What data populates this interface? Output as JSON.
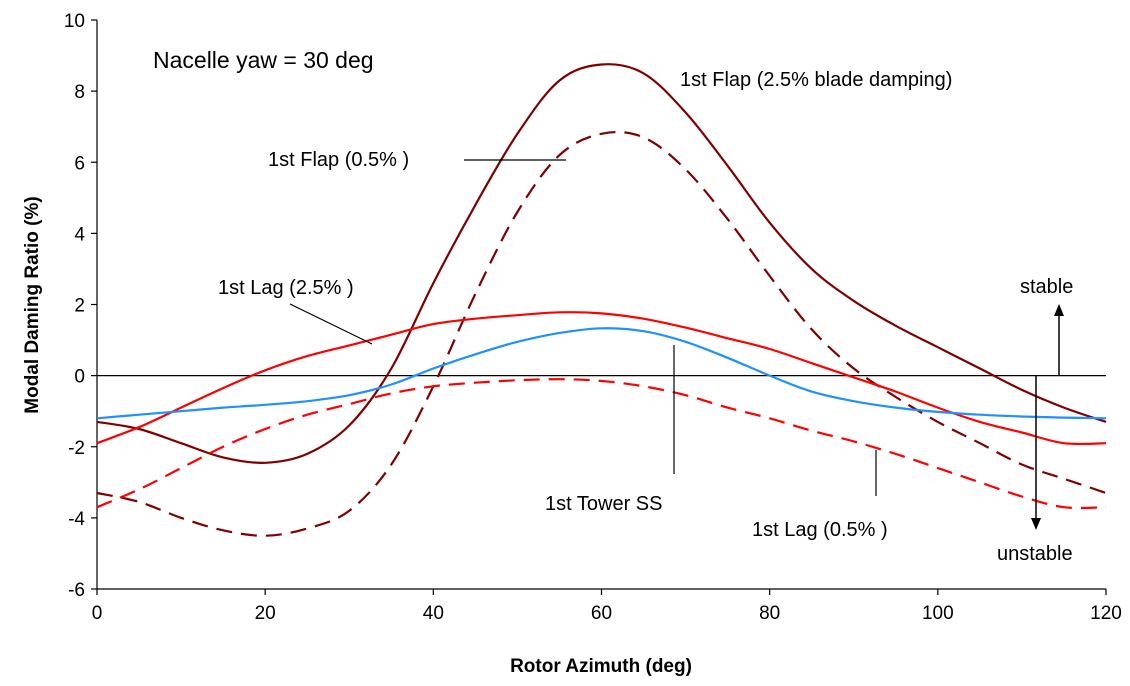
{
  "chart_data": {
    "type": "line",
    "title": "",
    "xlabel": "Rotor Azimuth (deg)",
    "ylabel": "Modal Daming Ratio (%)",
    "xlim": [
      0,
      120
    ],
    "ylim": [
      -6,
      10
    ],
    "xticks": [
      0,
      20,
      40,
      60,
      80,
      100,
      120
    ],
    "yticks": [
      -6,
      -4,
      -2,
      0,
      2,
      4,
      6,
      8,
      10
    ],
    "grid": false,
    "legend": "none",
    "series": [
      {
        "name": "1st Flap (2.5% blade damping)",
        "color": "#800000",
        "dash": "solid",
        "x": [
          0,
          5,
          10,
          15,
          20,
          25,
          30,
          35,
          40,
          45,
          50,
          55,
          60,
          65,
          70,
          75,
          80,
          85,
          90,
          95,
          100,
          105,
          110,
          115,
          120
        ],
        "y": [
          -1.3,
          -1.5,
          -1.9,
          -2.3,
          -2.45,
          -2.2,
          -1.4,
          0.2,
          2.6,
          4.8,
          6.8,
          8.3,
          8.75,
          8.5,
          7.4,
          5.9,
          4.3,
          3.0,
          2.1,
          1.4,
          0.8,
          0.2,
          -0.4,
          -0.9,
          -1.3
        ]
      },
      {
        "name": "1st Flap (0.5% )",
        "color": "#800000",
        "dash": "dashed",
        "x": [
          0,
          5,
          10,
          15,
          20,
          25,
          30,
          35,
          40,
          45,
          50,
          55,
          60,
          65,
          70,
          75,
          80,
          85,
          90,
          95,
          100,
          105,
          110,
          115,
          120
        ],
        "y": [
          -3.3,
          -3.55,
          -4.0,
          -4.35,
          -4.5,
          -4.3,
          -3.8,
          -2.5,
          -0.3,
          2.3,
          4.6,
          6.2,
          6.8,
          6.7,
          5.8,
          4.4,
          2.8,
          1.3,
          0.2,
          -0.6,
          -1.3,
          -1.9,
          -2.5,
          -2.9,
          -3.3
        ]
      },
      {
        "name": "1st Lag (2.5% )",
        "color": "#ff0000",
        "dash": "solid",
        "x": [
          0,
          5,
          10,
          15,
          20,
          25,
          30,
          35,
          40,
          45,
          50,
          55,
          60,
          65,
          70,
          75,
          80,
          85,
          90,
          95,
          100,
          105,
          110,
          115,
          120
        ],
        "y": [
          -1.9,
          -1.45,
          -0.9,
          -0.35,
          0.15,
          0.55,
          0.85,
          1.15,
          1.45,
          1.6,
          1.7,
          1.78,
          1.75,
          1.6,
          1.35,
          1.05,
          0.75,
          0.35,
          -0.05,
          -0.45,
          -0.9,
          -1.3,
          -1.6,
          -1.9,
          -1.9
        ]
      },
      {
        "name": "1st Lag (0.5% )",
        "color": "#ff0000",
        "dash": "dashed",
        "x": [
          0,
          5,
          10,
          15,
          20,
          25,
          30,
          35,
          40,
          45,
          50,
          55,
          60,
          65,
          70,
          75,
          80,
          85,
          90,
          95,
          100,
          105,
          110,
          115,
          120
        ],
        "y": [
          -3.7,
          -3.2,
          -2.6,
          -2.0,
          -1.5,
          -1.1,
          -0.8,
          -0.5,
          -0.3,
          -0.2,
          -0.13,
          -0.1,
          -0.15,
          -0.3,
          -0.55,
          -0.9,
          -1.2,
          -1.55,
          -1.85,
          -2.2,
          -2.6,
          -3.0,
          -3.4,
          -3.7,
          -3.7
        ]
      },
      {
        "name": "1st Tower SS",
        "color": "#1e90ff",
        "dash": "solid",
        "x": [
          0,
          5,
          10,
          15,
          20,
          25,
          30,
          35,
          40,
          45,
          50,
          55,
          60,
          65,
          70,
          75,
          80,
          85,
          90,
          95,
          100,
          105,
          110,
          115,
          120
        ],
        "y": [
          -1.2,
          -1.1,
          -1.0,
          -0.9,
          -0.82,
          -0.72,
          -0.55,
          -0.25,
          0.2,
          0.6,
          0.95,
          1.2,
          1.33,
          1.25,
          0.95,
          0.5,
          0.0,
          -0.45,
          -0.72,
          -0.9,
          -1.02,
          -1.1,
          -1.15,
          -1.18,
          -1.2
        ]
      }
    ],
    "annotations": {
      "title_note": "Nacelle yaw = 30 deg",
      "flap_25": "1st Flap (2.5% blade damping)",
      "flap_05": "1st Flap (0.5% )",
      "lag_25": "1st Lag (2.5% )",
      "lag_05": "1st Lag (0.5% )",
      "tower": "1st Tower SS",
      "stable": "stable",
      "unstable": "unstable"
    }
  }
}
